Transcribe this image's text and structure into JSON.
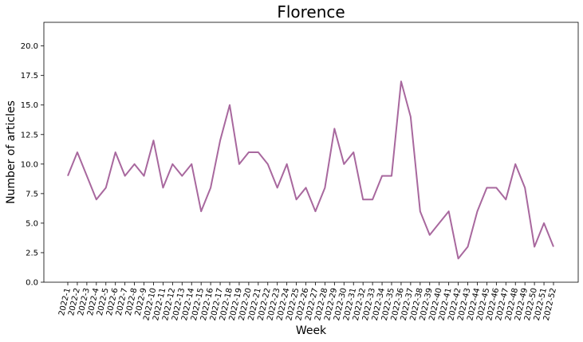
{
  "chart_data": {
    "type": "line",
    "title": "Florence",
    "xlabel": "Week",
    "ylabel": "Number of articles",
    "ylim": [
      0,
      22
    ],
    "yticks": [
      "0.0",
      "2.5",
      "5.0",
      "7.5",
      "10.0",
      "12.5",
      "15.0",
      "17.5",
      "20.0"
    ],
    "grid": false,
    "line_color": "#a8689e",
    "categories": [
      "2022-1",
      "2022-2",
      "2022-3",
      "2022-4",
      "2022-5",
      "2022-6",
      "2022-7",
      "2022-8",
      "2022-9",
      "2022-10",
      "2022-11",
      "2022-12",
      "2022-13",
      "2022-14",
      "2022-15",
      "2022-16",
      "2022-17",
      "2022-18",
      "2022-19",
      "2022-20",
      "2022-21",
      "2022-22",
      "2022-23",
      "2022-24",
      "2022-25",
      "2022-26",
      "2022-27",
      "2022-28",
      "2022-29",
      "2022-30",
      "2022-31",
      "2022-32",
      "2022-33",
      "2022-34",
      "2022-35",
      "2022-36",
      "2022-37",
      "2022-38",
      "2022-39",
      "2022-40",
      "2022-41",
      "2022-42",
      "2022-43",
      "2022-44",
      "2022-45",
      "2022-46",
      "2022-47",
      "2022-48",
      "2022-49",
      "2022-50",
      "2022-51",
      "2022-52"
    ],
    "values": [
      9,
      11,
      9,
      7,
      8,
      11,
      9,
      10,
      9,
      12,
      8,
      10,
      9,
      10,
      6,
      8,
      12,
      15,
      10,
      11,
      11,
      10,
      8,
      10,
      7,
      8,
      6,
      8,
      13,
      10,
      11,
      7,
      7,
      9,
      9,
      17,
      14,
      6,
      4,
      5,
      6,
      2,
      3,
      6,
      8,
      8,
      7,
      10,
      8,
      3,
      5,
      3
    ]
  }
}
